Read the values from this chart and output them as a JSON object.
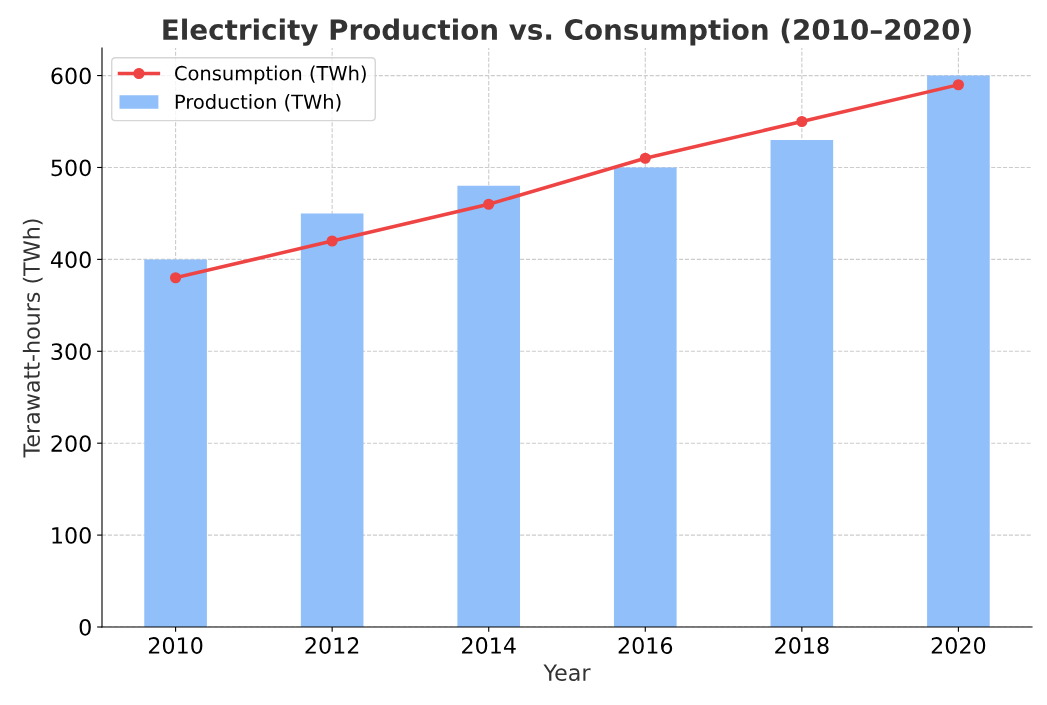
{
  "chart_data": {
    "type": "bar",
    "title": "Electricity Production vs. Consumption (2010–2020)",
    "xlabel": "Year",
    "ylabel": "Terawatt-hours (TWh)",
    "categories": [
      "2010",
      "2012",
      "2014",
      "2016",
      "2018",
      "2020"
    ],
    "series": [
      {
        "name": "Production (TWh)",
        "color": "#90bff9",
        "values": [
          400,
          450,
          480,
          500,
          530,
          600
        ]
      },
      {
        "name": "Consumption (TWh)",
        "type": "line",
        "color": "#ef4444",
        "values": [
          380,
          420,
          460,
          510,
          550,
          590
        ],
        "marker": "circle",
        "line_style": "solid"
      }
    ],
    "ylim": [
      0,
      630
    ],
    "yticks": [
      0,
      100,
      200,
      300,
      400,
      500,
      600
    ],
    "grid": true,
    "legend": "top left"
  }
}
